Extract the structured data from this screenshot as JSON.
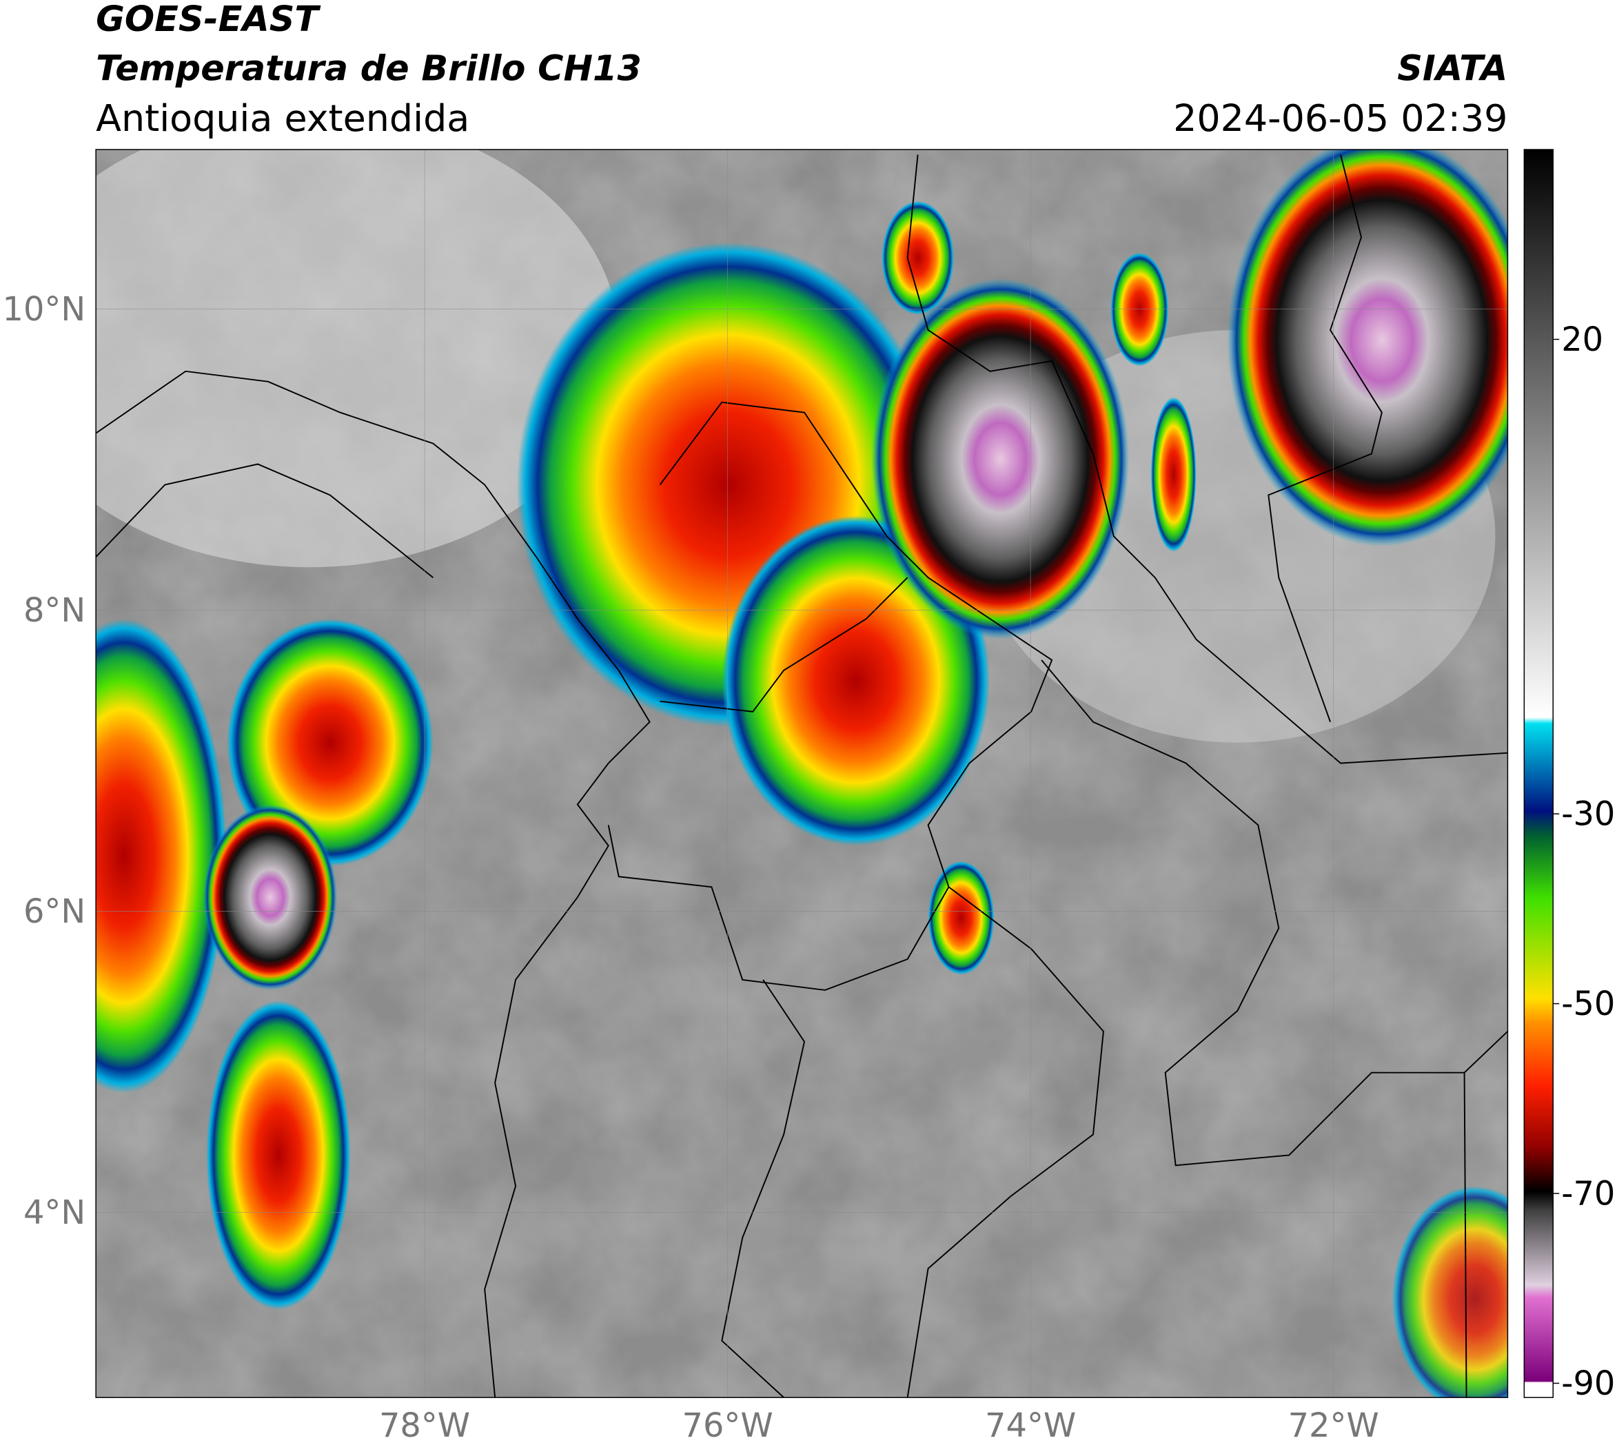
{
  "header": {
    "satellite": "GOES-EAST",
    "product": "Temperatura de Brillo CH13",
    "region": "Antioquia extendida",
    "agency": "SIATA",
    "datetime": "2024-06-05 02:39"
  },
  "map": {
    "lat_lim": [
      2.77,
      11.06
    ],
    "lon_lim": [
      -80.17,
      -70.85
    ],
    "lat_ticks": [
      {
        "value": 10,
        "label": "10°N"
      },
      {
        "value": 8,
        "label": "8°N"
      },
      {
        "value": 6,
        "label": "6°N"
      },
      {
        "value": 4,
        "label": "4°N"
      }
    ],
    "lon_ticks": [
      {
        "value": -78,
        "label": "78°W"
      },
      {
        "value": -76,
        "label": "76°W"
      },
      {
        "value": -74,
        "label": "74°W"
      },
      {
        "value": -72,
        "label": "72°W"
      }
    ]
  },
  "colorbar": {
    "lim": [
      -91.5,
      40
    ],
    "ticks": [
      20,
      -30,
      -50,
      -70,
      -90
    ]
  }
}
